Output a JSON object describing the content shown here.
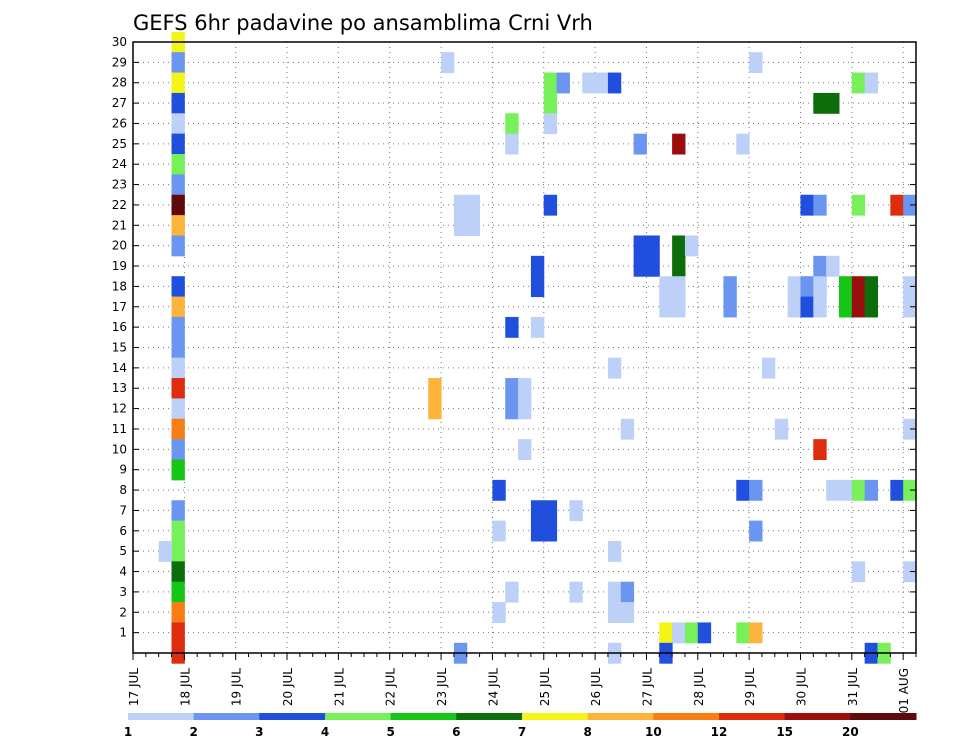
{
  "chart_data": {
    "type": "heatmap",
    "title": "GEFS 6hr padavine po ansamblima Crni Vrh",
    "xlabel": "",
    "ylabel": "",
    "x_ticks": [
      "17 JUL",
      "18 JUL",
      "19 JUL",
      "20 JUL",
      "21 JUL",
      "22 JUL",
      "23 JUL",
      "24 JUL",
      "25 JUL",
      "26 JUL",
      "27 JUL",
      "28 JUL",
      "29 JUL",
      "30 JUL",
      "31 JUL",
      "01 AUG"
    ],
    "xlim": [
      0,
      15.25
    ],
    "y_ticks": [
      1,
      2,
      3,
      4,
      5,
      6,
      7,
      8,
      9,
      10,
      11,
      12,
      13,
      14,
      15,
      16,
      17,
      18,
      19,
      20,
      21,
      22,
      23,
      24,
      25,
      26,
      27,
      28,
      29,
      30
    ],
    "ylim": [
      0,
      30
    ],
    "grid": true,
    "colorbar": {
      "labels": [
        "1",
        "2",
        "3",
        "4",
        "5",
        "6",
        "7",
        "8",
        "10",
        "12",
        "15",
        "20"
      ],
      "colors": [
        "#bdd0f7",
        "#6a95f0",
        "#1f4fdc",
        "#77f05a",
        "#16c616",
        "#0b6e0b",
        "#f4f418",
        "#fcb43a",
        "#f77d14",
        "#dd2c0e",
        "#9c0d0d",
        "#5e0a0a"
      ]
    },
    "cells": [
      {
        "x": 0.75,
        "y": 30,
        "c": 7
      },
      {
        "x": 0.75,
        "y": 29,
        "c": 2
      },
      {
        "x": 0.75,
        "y": 28,
        "c": 7
      },
      {
        "x": 0.75,
        "y": 27,
        "c": 3
      },
      {
        "x": 0.75,
        "y": 26,
        "c": 1
      },
      {
        "x": 0.75,
        "y": 25,
        "c": 3
      },
      {
        "x": 0.75,
        "y": 24,
        "c": 4
      },
      {
        "x": 0.75,
        "y": 23,
        "c": 2
      },
      {
        "x": 0.75,
        "y": 22,
        "c": 12
      },
      {
        "x": 0.75,
        "y": 21,
        "c": 8
      },
      {
        "x": 0.75,
        "y": 20,
        "c": 2
      },
      {
        "x": 0.75,
        "y": 18,
        "c": 3
      },
      {
        "x": 0.75,
        "y": 17,
        "c": 8
      },
      {
        "x": 0.75,
        "y": 16,
        "c": 2
      },
      {
        "x": 0.75,
        "y": 15,
        "c": 2
      },
      {
        "x": 0.75,
        "y": 14,
        "c": 1
      },
      {
        "x": 0.75,
        "y": 13,
        "c": 10
      },
      {
        "x": 0.75,
        "y": 12,
        "c": 1
      },
      {
        "x": 0.75,
        "y": 11,
        "c": 9
      },
      {
        "x": 0.75,
        "y": 10,
        "c": 2
      },
      {
        "x": 0.75,
        "y": 9,
        "c": 5
      },
      {
        "x": 0.75,
        "y": 7,
        "c": 2
      },
      {
        "x": 0.75,
        "y": 6,
        "c": 4
      },
      {
        "x": 0.75,
        "y": 5,
        "c": 4
      },
      {
        "x": 0.5,
        "y": 5,
        "c": 1
      },
      {
        "x": 0.75,
        "y": 4,
        "c": 6
      },
      {
        "x": 0.75,
        "y": 3,
        "c": 5
      },
      {
        "x": 0.75,
        "y": 2,
        "c": 9
      },
      {
        "x": 0.75,
        "y": 1,
        "c": 10
      },
      {
        "x": 0.75,
        "y": 0,
        "c": 10
      },
      {
        "x": 6.0,
        "y": 29,
        "c": 1
      },
      {
        "x": 12.0,
        "y": 29,
        "c": 1
      },
      {
        "x": 8.0,
        "y": 28,
        "c": 4
      },
      {
        "x": 8.25,
        "y": 28,
        "c": 2
      },
      {
        "x": 8.75,
        "y": 28,
        "c": 1
      },
      {
        "x": 9.0,
        "y": 28,
        "c": 1
      },
      {
        "x": 9.25,
        "y": 28,
        "c": 3
      },
      {
        "x": 14.0,
        "y": 28,
        "c": 4
      },
      {
        "x": 14.25,
        "y": 28,
        "c": 1
      },
      {
        "x": 8.0,
        "y": 27,
        "c": 4
      },
      {
        "x": 13.25,
        "y": 27,
        "c": 6
      },
      {
        "x": 13.5,
        "y": 27,
        "c": 6
      },
      {
        "x": 7.25,
        "y": 26,
        "c": 4
      },
      {
        "x": 8.0,
        "y": 26,
        "c": 1
      },
      {
        "x": 7.25,
        "y": 25,
        "c": 1
      },
      {
        "x": 9.75,
        "y": 25,
        "c": 2
      },
      {
        "x": 10.5,
        "y": 25,
        "c": 11
      },
      {
        "x": 11.75,
        "y": 25,
        "c": 1
      },
      {
        "x": 6.25,
        "y": 22,
        "c": 1
      },
      {
        "x": 6.5,
        "y": 22,
        "c": 1
      },
      {
        "x": 8.0,
        "y": 22,
        "c": 3
      },
      {
        "x": 13.0,
        "y": 22,
        "c": 3
      },
      {
        "x": 13.25,
        "y": 22,
        "c": 2
      },
      {
        "x": 14.0,
        "y": 22,
        "c": 4
      },
      {
        "x": 14.75,
        "y": 22,
        "c": 10
      },
      {
        "x": 15.0,
        "y": 22,
        "c": 2
      },
      {
        "x": 6.25,
        "y": 21,
        "c": 1
      },
      {
        "x": 6.5,
        "y": 21,
        "c": 1
      },
      {
        "x": 9.75,
        "y": 20,
        "c": 3
      },
      {
        "x": 10.0,
        "y": 20,
        "c": 3
      },
      {
        "x": 10.5,
        "y": 20,
        "c": 6
      },
      {
        "x": 10.75,
        "y": 20,
        "c": 1
      },
      {
        "x": 9.75,
        "y": 19,
        "c": 3
      },
      {
        "x": 10.0,
        "y": 19,
        "c": 3
      },
      {
        "x": 10.5,
        "y": 19,
        "c": 6
      },
      {
        "x": 7.75,
        "y": 19,
        "c": 3
      },
      {
        "x": 13.25,
        "y": 19,
        "c": 2
      },
      {
        "x": 13.5,
        "y": 19,
        "c": 1
      },
      {
        "x": 7.75,
        "y": 18,
        "c": 3
      },
      {
        "x": 13.25,
        "y": 18,
        "c": 2
      },
      {
        "x": 10.25,
        "y": 18,
        "c": 1
      },
      {
        "x": 10.5,
        "y": 18,
        "c": 1
      },
      {
        "x": 11.5,
        "y": 18,
        "c": 2
      },
      {
        "x": 12.75,
        "y": 18,
        "c": 1
      },
      {
        "x": 13.0,
        "y": 18,
        "c": 2
      },
      {
        "x": 13.25,
        "y": 18,
        "c": 1
      },
      {
        "x": 13.75,
        "y": 18,
        "c": 5
      },
      {
        "x": 14.0,
        "y": 18,
        "c": 11
      },
      {
        "x": 14.25,
        "y": 18,
        "c": 6
      },
      {
        "x": 15.0,
        "y": 18,
        "c": 1
      },
      {
        "x": 10.25,
        "y": 17,
        "c": 1
      },
      {
        "x": 10.5,
        "y": 17,
        "c": 1
      },
      {
        "x": 11.5,
        "y": 17,
        "c": 2
      },
      {
        "x": 12.75,
        "y": 17,
        "c": 1
      },
      {
        "x": 13.0,
        "y": 17,
        "c": 3
      },
      {
        "x": 13.25,
        "y": 17,
        "c": 1
      },
      {
        "x": 13.75,
        "y": 17,
        "c": 5
      },
      {
        "x": 14.0,
        "y": 17,
        "c": 11
      },
      {
        "x": 14.25,
        "y": 17,
        "c": 6
      },
      {
        "x": 15.0,
        "y": 17,
        "c": 1
      },
      {
        "x": 7.25,
        "y": 16,
        "c": 3
      },
      {
        "x": 7.75,
        "y": 16,
        "c": 1
      },
      {
        "x": 9.25,
        "y": 14,
        "c": 1
      },
      {
        "x": 12.25,
        "y": 14,
        "c": 1
      },
      {
        "x": 5.75,
        "y": 13,
        "c": 8
      },
      {
        "x": 7.25,
        "y": 13,
        "c": 2
      },
      {
        "x": 7.5,
        "y": 13,
        "c": 1
      },
      {
        "x": 5.75,
        "y": 12,
        "c": 8
      },
      {
        "x": 7.25,
        "y": 12,
        "c": 2
      },
      {
        "x": 7.5,
        "y": 12,
        "c": 1
      },
      {
        "x": 9.5,
        "y": 11,
        "c": 1
      },
      {
        "x": 12.5,
        "y": 11,
        "c": 1
      },
      {
        "x": 15.0,
        "y": 11,
        "c": 1
      },
      {
        "x": 7.5,
        "y": 10,
        "c": 1
      },
      {
        "x": 13.25,
        "y": 10,
        "c": 10
      },
      {
        "x": 7.0,
        "y": 8,
        "c": 3
      },
      {
        "x": 11.75,
        "y": 8,
        "c": 3
      },
      {
        "x": 12.0,
        "y": 8,
        "c": 2
      },
      {
        "x": 13.5,
        "y": 8,
        "c": 1
      },
      {
        "x": 13.75,
        "y": 8,
        "c": 1
      },
      {
        "x": 14.0,
        "y": 8,
        "c": 4
      },
      {
        "x": 14.25,
        "y": 8,
        "c": 2
      },
      {
        "x": 14.75,
        "y": 8,
        "c": 3
      },
      {
        "x": 15.0,
        "y": 8,
        "c": 4
      },
      {
        "x": 7.75,
        "y": 7,
        "c": 3
      },
      {
        "x": 8.0,
        "y": 7,
        "c": 3
      },
      {
        "x": 8.5,
        "y": 7,
        "c": 1
      },
      {
        "x": 7.75,
        "y": 6,
        "c": 3
      },
      {
        "x": 8.0,
        "y": 6,
        "c": 3
      },
      {
        "x": 7.0,
        "y": 6,
        "c": 1
      },
      {
        "x": 12.0,
        "y": 6,
        "c": 2
      },
      {
        "x": 9.25,
        "y": 5,
        "c": 1
      },
      {
        "x": 14.0,
        "y": 4,
        "c": 1
      },
      {
        "x": 15.0,
        "y": 4,
        "c": 1
      },
      {
        "x": 7.25,
        "y": 3,
        "c": 1
      },
      {
        "x": 8.5,
        "y": 3,
        "c": 1
      },
      {
        "x": 9.25,
        "y": 3,
        "c": 1
      },
      {
        "x": 9.5,
        "y": 3,
        "c": 2
      },
      {
        "x": 7.0,
        "y": 2,
        "c": 1
      },
      {
        "x": 9.25,
        "y": 2,
        "c": 1
      },
      {
        "x": 9.5,
        "y": 2,
        "c": 1
      },
      {
        "x": 10.25,
        "y": 1,
        "c": 7
      },
      {
        "x": 10.5,
        "y": 1,
        "c": 1
      },
      {
        "x": 10.75,
        "y": 1,
        "c": 4
      },
      {
        "x": 11.0,
        "y": 1,
        "c": 3
      },
      {
        "x": 11.75,
        "y": 1,
        "c": 4
      },
      {
        "x": 12.0,
        "y": 1,
        "c": 8
      },
      {
        "x": 6.25,
        "y": 0,
        "c": 2
      },
      {
        "x": 9.25,
        "y": 0,
        "c": 1
      },
      {
        "x": 10.25,
        "y": 0,
        "c": 3
      },
      {
        "x": 14.25,
        "y": 0,
        "c": 3
      },
      {
        "x": 14.5,
        "y": 0,
        "c": 4
      }
    ]
  }
}
